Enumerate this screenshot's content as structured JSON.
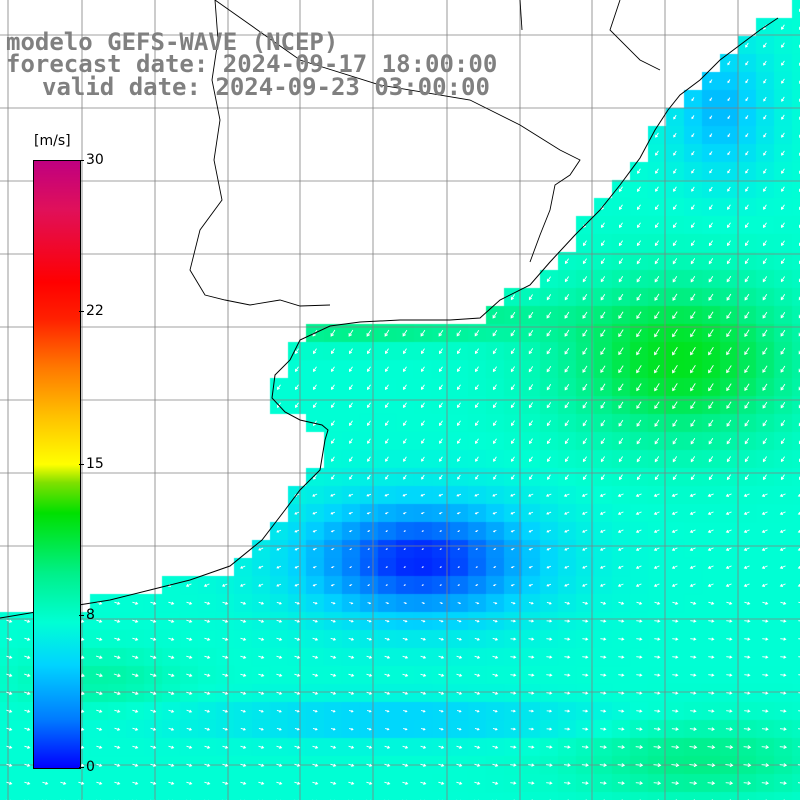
{
  "title": {
    "line1": "modelo GEFS-WAVE (NCEP)",
    "line2": "forecast date: 2024-09-17 18:00:00",
    "line3": "valid date: 2024-09-23 03:00:00"
  },
  "colorbar": {
    "unit": "[m/s]",
    "ticks": [
      "30",
      "22",
      "15",
      "8",
      "0"
    ],
    "min": 0,
    "max": 30
  },
  "chart_data": {
    "type": "heatmap",
    "variable": "wind speed with direction arrows",
    "unit": "m/s",
    "value_range": [
      0,
      30
    ],
    "colorbar_ticks": [
      0,
      8,
      15,
      22,
      30
    ],
    "grid_lines": true,
    "regions": [
      {
        "area": "upper-right coastal strip",
        "speed_ms": 4,
        "direction": "from northeast"
      },
      {
        "area": "right-center open ocean",
        "speed_ms": 12,
        "direction": "from northeast"
      },
      {
        "area": "central gulf/estuary mouth",
        "speed_ms": 11,
        "direction": "from east"
      },
      {
        "area": "central band",
        "speed_ms": 7,
        "direction": "from northeast"
      },
      {
        "area": "center calm zone",
        "speed_ms": 1,
        "direction": "variable"
      },
      {
        "area": "lower-right band",
        "speed_ms": 10,
        "direction": "from west"
      },
      {
        "area": "bottom band",
        "speed_ms": 9,
        "direction": "from west"
      }
    ]
  }
}
